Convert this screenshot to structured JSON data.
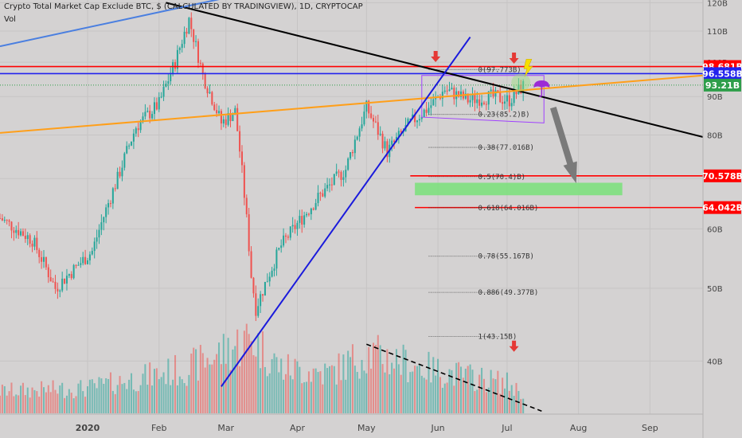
{
  "header": {
    "title": "Crypto Total Market Cap Exclude BTC, $ (CALCULATED BY TRADINGVIEW), 1D, CRYPTOCAP",
    "sub": "Vol"
  },
  "colors": {
    "up": "#26a69a",
    "down": "#ef5350",
    "bg": "#d4d2d2",
    "red_level": "#ff0000",
    "blue_level": "#2222ee",
    "green_level": "#2e9e4a",
    "orange_line": "#ff9f1a",
    "blue_line": "#1a1adc",
    "light_blue_line": "#4a7fe0",
    "black_line": "#000000",
    "zone": "#7ee07e",
    "channel": "#a040ff"
  },
  "chart_data": {
    "type": "candlestick",
    "title": "Crypto Total Market Cap Exclude BTC, $ (CALCULATED BY TRADINGVIEW), 1D, CRYPTOCAP",
    "x_range": [
      "2019-11-24",
      "2020-09-24"
    ],
    "ylim": [
      34,
      121
    ],
    "y_scale": "log",
    "y_unit": "B",
    "y_ticks": [
      {
        "v": 40,
        "label": "40B"
      },
      {
        "v": 50,
        "label": "50B"
      },
      {
        "v": 60,
        "label": "60B"
      },
      {
        "v": 70,
        "label": "70B"
      },
      {
        "v": 80,
        "label": "80B"
      },
      {
        "v": 90,
        "label": "90B"
      },
      {
        "v": 100,
        "label": "100B"
      },
      {
        "v": 110,
        "label": "110B"
      },
      {
        "v": 120,
        "label": "120B"
      }
    ],
    "x_ticks": [
      {
        "date": "2020-01-01",
        "label": "2020"
      },
      {
        "date": "2020-02-01",
        "label": "Feb"
      },
      {
        "date": "2020-03-01",
        "label": "Mar"
      },
      {
        "date": "2020-04-01",
        "label": "Apr"
      },
      {
        "date": "2020-05-01",
        "label": "May"
      },
      {
        "date": "2020-06-01",
        "label": "Jun"
      },
      {
        "date": "2020-07-01",
        "label": "Jul"
      },
      {
        "date": "2020-08-01",
        "label": "Aug"
      },
      {
        "date": "2020-09-01",
        "label": "Sep"
      }
    ],
    "price_anchors": [
      [
        "2019-11-24",
        62
      ],
      [
        "2019-12-08",
        58
      ],
      [
        "2019-12-18",
        50
      ],
      [
        "2020-01-03",
        56
      ],
      [
        "2020-01-14",
        70
      ],
      [
        "2020-01-22",
        82
      ],
      [
        "2020-02-01",
        88
      ],
      [
        "2020-02-08",
        100
      ],
      [
        "2020-02-14",
        114
      ],
      [
        "2020-02-20",
        96
      ],
      [
        "2020-02-28",
        83
      ],
      [
        "2020-03-05",
        86
      ],
      [
        "2020-03-12",
        52
      ],
      [
        "2020-03-14",
        47
      ],
      [
        "2020-03-25",
        57
      ],
      [
        "2020-04-10",
        66
      ],
      [
        "2020-04-22",
        72
      ],
      [
        "2020-05-01",
        87
      ],
      [
        "2020-05-10",
        76
      ],
      [
        "2020-05-20",
        83
      ],
      [
        "2020-05-28",
        87
      ],
      [
        "2020-06-04",
        92
      ],
      [
        "2020-06-14",
        89
      ],
      [
        "2020-06-24",
        90
      ],
      [
        "2020-07-02",
        89
      ],
      [
        "2020-07-08",
        93
      ]
    ],
    "volume_anchors": [
      [
        "2019-11-24",
        0.22
      ],
      [
        "2020-01-01",
        0.25
      ],
      [
        "2020-02-14",
        0.45
      ],
      [
        "2020-03-12",
        0.75
      ],
      [
        "2020-03-25",
        0.45
      ],
      [
        "2020-04-15",
        0.4
      ],
      [
        "2020-05-01",
        0.6
      ],
      [
        "2020-05-10",
        0.55
      ],
      [
        "2020-06-01",
        0.42
      ],
      [
        "2020-07-01",
        0.3
      ],
      [
        "2020-07-08",
        0.2
      ]
    ],
    "last_date": "2020-07-08",
    "levels": [
      {
        "value": 98.681,
        "label": "98.681B",
        "color": "#ff0000",
        "from": "2019-11-24"
      },
      {
        "value": 96.558,
        "label": "96.558B",
        "color": "#2222ee",
        "from": "2019-11-24"
      },
      {
        "value": 93.21,
        "label": "93.21B",
        "color": "#2e9e4a",
        "from": "2019-11-24",
        "dotted": true
      },
      {
        "value": 70.578,
        "label": "70.578B",
        "color": "#ff0000",
        "from": "2020-05-20"
      },
      {
        "value": 64.042,
        "label": "64.042B",
        "color": "#ff0000",
        "from": "2020-05-22"
      }
    ],
    "fib_levels": [
      {
        "value": 97.773,
        "label": "0(97.773B)"
      },
      {
        "value": 85.2,
        "label": "0.23(85.2)B)"
      },
      {
        "value": 77.016,
        "label": "0.38(77.016B)"
      },
      {
        "value": 70.4,
        "label": "0.5(70.4)B)"
      },
      {
        "value": 64.016,
        "label": "0.618(64.016B)"
      },
      {
        "value": 55.167,
        "label": "0.78(55.167B)"
      },
      {
        "value": 49.377,
        "label": "0.886(49.377B)"
      },
      {
        "value": 43.15,
        "label": "1(43.15B)"
      }
    ],
    "fib_range": [
      "2020-05-28",
      "2020-06-28"
    ],
    "trendlines": [
      {
        "name": "black-resistance",
        "color": "#000000",
        "width": 2,
        "p1": [
          "2020-02-04",
          120
        ],
        "p2": [
          "2020-09-24",
          79.5
        ]
      },
      {
        "name": "orange-support",
        "color": "#ff9f1a",
        "width": 2,
        "p1": [
          "2019-11-24",
          80.5
        ],
        "p2": [
          "2020-09-24",
          96
        ]
      },
      {
        "name": "blue-rising",
        "color": "#1a1adc",
        "width": 2,
        "p1": [
          "2020-02-28",
          37
        ],
        "p2": [
          "2020-06-15",
          108
        ]
      },
      {
        "name": "light-blue-top",
        "color": "#4a7fe0",
        "width": 2,
        "p1": [
          "2019-11-24",
          105
        ],
        "p2": [
          "2020-04-28",
          133
        ]
      }
    ],
    "volume_trend": {
      "p1": [
        "2020-05-01",
        0.62
      ],
      "p2": [
        "2020-07-16",
        0.02
      ]
    },
    "channel": [
      [
        "2020-05-25",
        96
      ],
      [
        "2020-07-17",
        96
      ],
      [
        "2020-07-17",
        83
      ],
      [
        "2020-05-25",
        84.5
      ]
    ],
    "zone": {
      "from": "2020-05-22",
      "to": "2020-08-20",
      "top": 69.1,
      "bottom": 66.5
    },
    "arrow": {
      "from": [
        "2020-07-21",
        87
      ],
      "to": [
        "2020-07-31",
        69
      ]
    },
    "markers": [
      {
        "type": "red-arrow",
        "date": "2020-05-31",
        "value": 101
      },
      {
        "type": "red-arrow",
        "date": "2020-07-04",
        "value": 100.5
      },
      {
        "type": "red-arrow",
        "date": "2020-07-04",
        "vol": 0.58
      },
      {
        "type": "lightning",
        "date": "2020-07-10",
        "value": 98
      },
      {
        "type": "umbrella",
        "date": "2020-07-16",
        "value": 92.5
      },
      {
        "type": "highlight-circle",
        "date": "2020-07-07",
        "value": 94
      }
    ]
  }
}
